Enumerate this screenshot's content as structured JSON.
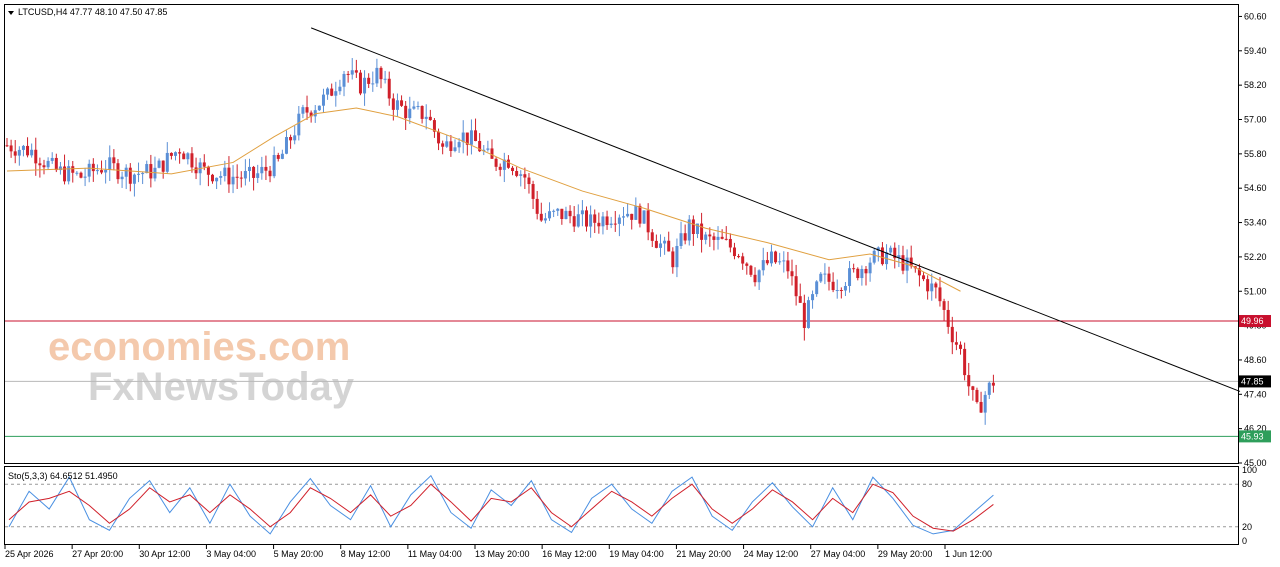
{
  "colors": {
    "bull": "#5a8fd6",
    "bear": "#d0202a",
    "ma": "#e0a040",
    "trendline": "#000000",
    "resistance": "#c8102e",
    "support": "#2e9e5b",
    "current": "#000000",
    "sto_main": "#4a90e2",
    "sto_signal": "#d0202a",
    "logo_orange": "#f6c7a5",
    "logo_gray": "#d2d2d2"
  },
  "header": {
    "symbol_text": "LTCUSD,H4  47.77 48.10 47.50 47.85"
  },
  "watermark": {
    "line1": "economies.com",
    "line2": "FxNewsToday"
  },
  "levels": {
    "resistance": {
      "value": 49.96,
      "label": "49.96"
    },
    "current": {
      "value": 47.85,
      "label": "47.85"
    },
    "support": {
      "value": 45.93,
      "label": "45.93"
    }
  },
  "oscillator": {
    "label": "Sto(5,3,3) 64.6512 51.4950",
    "ticks": [
      "100",
      "80",
      "20",
      "0"
    ],
    "levels": [
      80,
      20
    ]
  },
  "chart_data": {
    "type": "candlestick",
    "symbol": "LTCUSD",
    "timeframe": "H4",
    "ohlc_last": {
      "open": 47.77,
      "high": 48.1,
      "low": 47.5,
      "close": 47.85
    },
    "y_ticks": [
      "60.60",
      "59.40",
      "58.20",
      "57.00",
      "55.80",
      "54.60",
      "53.40",
      "52.20",
      "51.00",
      "49.80",
      "48.60",
      "47.40",
      "46.20",
      "45.00"
    ],
    "ylim": [
      45.0,
      61.0
    ],
    "x_ticks": [
      "25 Apr 2026",
      "27 Apr 20:00",
      "30 Apr 12:00",
      "3 May 04:00",
      "5 May 20:00",
      "8 May 12:00",
      "11 May 04:00",
      "13 May 20:00",
      "16 May 12:00",
      "19 May 04:00",
      "21 May 20:00",
      "24 May 12:00",
      "27 May 04:00",
      "29 May 20:00",
      "1 Jun 12:00"
    ],
    "price_path": [
      [
        0,
        56.1
      ],
      [
        6,
        55.9
      ],
      [
        12,
        55.2
      ],
      [
        18,
        55.0
      ],
      [
        24,
        55.4
      ],
      [
        30,
        55.1
      ],
      [
        36,
        55.2
      ],
      [
        42,
        56.0
      ],
      [
        48,
        55.2
      ],
      [
        54,
        55.0
      ],
      [
        60,
        55.0
      ],
      [
        66,
        55.5
      ],
      [
        72,
        57.2
      ],
      [
        78,
        57.8
      ],
      [
        82,
        58.7
      ],
      [
        86,
        58.2
      ],
      [
        90,
        58.6
      ],
      [
        94,
        57.6
      ],
      [
        98,
        57.2
      ],
      [
        102,
        57.2
      ],
      [
        106,
        56.0
      ],
      [
        110,
        56.5
      ],
      [
        114,
        56.2
      ],
      [
        118,
        55.5
      ],
      [
        122,
        55.6
      ],
      [
        126,
        55.0
      ],
      [
        130,
        53.5
      ],
      [
        134,
        53.7
      ],
      [
        138,
        53.6
      ],
      [
        142,
        53.4
      ],
      [
        146,
        53.6
      ],
      [
        150,
        53.8
      ],
      [
        154,
        53.7
      ],
      [
        158,
        52.8
      ],
      [
        162,
        52.1
      ],
      [
        166,
        53.3
      ],
      [
        170,
        52.8
      ],
      [
        174,
        52.7
      ],
      [
        178,
        52.4
      ],
      [
        182,
        51.6
      ],
      [
        186,
        52.1
      ],
      [
        190,
        51.8
      ],
      [
        194,
        50.0
      ],
      [
        198,
        51.4
      ],
      [
        202,
        51.3
      ],
      [
        206,
        51.6
      ],
      [
        210,
        52.1
      ],
      [
        214,
        52.3
      ],
      [
        218,
        52.0
      ],
      [
        222,
        51.5
      ],
      [
        226,
        51.0
      ],
      [
        228,
        50.3
      ],
      [
        230,
        49.5
      ],
      [
        232,
        48.9
      ],
      [
        234,
        47.7
      ],
      [
        236,
        46.8
      ],
      [
        238,
        47.4
      ],
      [
        240,
        47.85
      ]
    ],
    "moving_average": [
      [
        0,
        55.2
      ],
      [
        20,
        55.3
      ],
      [
        40,
        55.1
      ],
      [
        55,
        55.5
      ],
      [
        65,
        56.4
      ],
      [
        75,
        57.2
      ],
      [
        85,
        57.4
      ],
      [
        95,
        57.1
      ],
      [
        110,
        56.3
      ],
      [
        125,
        55.3
      ],
      [
        140,
        54.5
      ],
      [
        155,
        53.9
      ],
      [
        170,
        53.2
      ],
      [
        185,
        52.7
      ],
      [
        200,
        52.1
      ],
      [
        210,
        52.3
      ],
      [
        220,
        51.9
      ],
      [
        232,
        51.0
      ]
    ],
    "trendline": {
      "start": [
        74,
        60.2
      ],
      "end": [
        300,
        47.5
      ]
    },
    "stochastic": {
      "main": [
        20,
        70,
        45,
        90,
        30,
        15,
        60,
        85,
        40,
        75,
        25,
        80,
        35,
        10,
        55,
        88,
        50,
        30,
        78,
        20,
        65,
        92,
        40,
        18,
        72,
        50,
        85,
        30,
        12,
        60,
        80,
        45,
        25,
        70,
        90,
        35,
        15,
        55,
        82,
        48,
        20,
        75,
        30,
        90,
        60,
        22,
        10,
        15,
        40,
        64.65
      ],
      "signal": [
        30,
        55,
        60,
        70,
        50,
        25,
        45,
        75,
        55,
        65,
        40,
        65,
        45,
        20,
        40,
        75,
        60,
        40,
        65,
        35,
        50,
        80,
        55,
        28,
        60,
        55,
        75,
        40,
        20,
        45,
        70,
        55,
        35,
        60,
        80,
        45,
        25,
        45,
        72,
        55,
        30,
        60,
        40,
        80,
        68,
        35,
        18,
        14,
        30,
        51.5
      ]
    }
  }
}
